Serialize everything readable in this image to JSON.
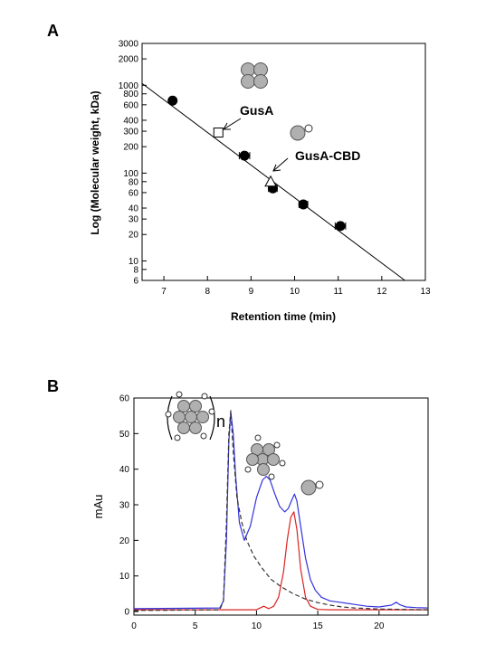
{
  "chart_data": [
    {
      "panel": "A",
      "type": "scatter",
      "xlabel": "Retention time (min)",
      "ylabel": "Log (Molecular weight, kDa)",
      "xlim": [
        6.5,
        13
      ],
      "ylim": [
        6,
        3000
      ],
      "yscale": "log",
      "xticks": [
        7,
        8,
        9,
        10,
        11,
        12,
        13
      ],
      "yticks": [
        6,
        8,
        10,
        20,
        30,
        40,
        60,
        80,
        100,
        200,
        300,
        400,
        600,
        800,
        1000,
        2000,
        3000
      ],
      "grid": false,
      "series": [
        {
          "marker": "filled-circle",
          "x": [
            7.2,
            8.85,
            9.5,
            10.2,
            11.05
          ],
          "y": [
            669,
            158,
            67,
            44,
            25
          ],
          "xerr": [
            0,
            0.12,
            0.1,
            0.1,
            0.12
          ]
        },
        {
          "marker": "open-square",
          "x": [
            8.25
          ],
          "y": [
            290
          ]
        },
        {
          "marker": "open-triangle",
          "x": [
            9.45
          ],
          "y": [
            80
          ]
        }
      ],
      "fit_line": {
        "x": [
          6.5,
          12.53
        ],
        "y": [
          1050,
          6
        ]
      },
      "annotations": [
        {
          "text": "GusA",
          "points_to": {
            "x": 8.25,
            "y": 290
          }
        },
        {
          "text": "GusA-CBD",
          "points_to": {
            "x": 9.45,
            "y": 80
          }
        }
      ]
    },
    {
      "panel": "B",
      "type": "line",
      "ylabel": "mAu",
      "xlim": [
        0,
        24
      ],
      "ylim": [
        -1,
        60
      ],
      "xticks": [
        0,
        5,
        10,
        15,
        20
      ],
      "yticks": [
        0,
        10,
        20,
        30,
        40,
        50,
        60
      ],
      "grid": false,
      "series": [
        {
          "color": "#3333dd",
          "style": "solid",
          "x": [
            0,
            7,
            7.3,
            7.55,
            7.75,
            7.9,
            8.1,
            8.3,
            8.6,
            9,
            9.5,
            10,
            10.5,
            10.8,
            11.1,
            11.5,
            11.9,
            12.3,
            12.6,
            12.9,
            13.1,
            13.3,
            13.6,
            14,
            14.4,
            14.8,
            15.3,
            16,
            17,
            18,
            19,
            20,
            21,
            21.4,
            21.7,
            22.2,
            23,
            24
          ],
          "y": [
            0.8,
            1.0,
            3.0,
            20.0,
            48.0,
            56.0,
            50.0,
            38.0,
            25.0,
            20.0,
            24.0,
            32.0,
            37.0,
            38.0,
            37.0,
            33.0,
            29.5,
            28.0,
            29.0,
            31.5,
            33.0,
            31.0,
            24.0,
            15.0,
            9.0,
            6.0,
            4.0,
            3.0,
            2.5,
            2.0,
            1.5,
            1.3,
            1.8,
            2.6,
            1.9,
            1.3,
            1.1,
            1.0
          ]
        },
        {
          "color": "#dd2222",
          "style": "solid",
          "x": [
            0,
            10,
            10.3,
            10.6,
            11,
            11.4,
            11.8,
            12.2,
            12.5,
            12.8,
            13.05,
            13.3,
            13.6,
            14,
            14.4,
            15,
            16,
            24
          ],
          "y": [
            0.5,
            0.5,
            1.0,
            1.5,
            0.8,
            1.5,
            4.0,
            11.0,
            20.0,
            26.5,
            28.0,
            23.0,
            12.0,
            4.0,
            1.5,
            0.6,
            0.5,
            0.5
          ]
        },
        {
          "color": "#333333",
          "style": "dashed",
          "x": [
            0,
            7,
            7.3,
            7.55,
            7.75,
            7.9,
            8.1,
            8.4,
            8.8,
            9.2,
            9.8,
            10.5,
            11.2,
            12,
            13,
            14,
            15,
            16,
            17,
            18,
            20,
            24
          ],
          "y": [
            0.3,
            0.5,
            3.0,
            25.0,
            50.0,
            56.5,
            45.0,
            32.0,
            25.0,
            20.0,
            15.5,
            12.0,
            9.0,
            7.0,
            5.0,
            3.5,
            2.5,
            1.8,
            1.3,
            1.0,
            0.7,
            0.5
          ]
        }
      ],
      "annotations": [
        {
          "text": "n"
        }
      ]
    }
  ],
  "panelA": {
    "label": "A",
    "xlabel": "Retention time (min)",
    "ylabel": "Log (Molecular weight, kDa)",
    "gusA_label": "GusA",
    "gusACBD_label": "GusA-CBD"
  },
  "panelB": {
    "label": "B",
    "ylabel": "mAu",
    "n_label": "n"
  },
  "colors": {
    "blue_trace": "#3333dd",
    "red_trace": "#dd2222",
    "dashed_trace": "#333333",
    "subunit_fill": "#b0b0b0"
  }
}
